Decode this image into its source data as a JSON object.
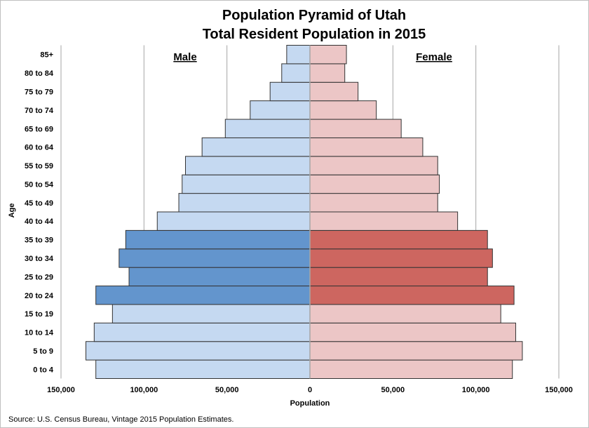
{
  "chart_data": {
    "type": "bar",
    "orientation": "horizontal-population-pyramid",
    "title_line1": "Population Pyramid of Utah",
    "title_line2": "Total Resident Population in 2015",
    "xlabel": "Population",
    "ylabel": "Age",
    "source": "Source: U.S. Census Bureau, Vintage 2015 Population Estimates.",
    "male_label": "Male",
    "female_label": "Female",
    "xlim": [
      -150000,
      150000
    ],
    "x_ticks": [
      -150000,
      -100000,
      -50000,
      0,
      50000,
      100000,
      150000
    ],
    "x_tick_labels": [
      "150,000",
      "100,000",
      "50,000",
      "0",
      "50,000",
      "100,000",
      "150,000"
    ],
    "grid": "vertical",
    "categories": [
      "0 to 4",
      "5 to 9",
      "10 to 14",
      "15 to 19",
      "20 to 24",
      "25 to 29",
      "30 to 34",
      "35 to 39",
      "40 to 44",
      "45 to 49",
      "50 to 54",
      "55 to 59",
      "60 to 64",
      "65 to 69",
      "70 to 74",
      "75 to 79",
      "80 to 84",
      "85+"
    ],
    "highlighted_categories": [
      "20 to 24",
      "25 to 29",
      "30 to 34",
      "35 to 39"
    ],
    "series": [
      {
        "name": "Male",
        "values": [
          129000,
          135000,
          130000,
          119000,
          129000,
          109000,
          115000,
          111000,
          92000,
          79000,
          77000,
          75000,
          65000,
          51000,
          36000,
          24000,
          17000,
          14000
        ]
      },
      {
        "name": "Female",
        "values": [
          122000,
          128000,
          124000,
          115000,
          123000,
          107000,
          110000,
          107000,
          89000,
          77000,
          78000,
          77000,
          68000,
          55000,
          40000,
          29000,
          21000,
          22000
        ]
      }
    ],
    "colors": {
      "male_base": "#c5d9f1",
      "male_highlight": "#6395cd",
      "female_base": "#ecc6c6",
      "female_highlight": "#cd6660",
      "bar_stroke": "#333333",
      "gridline": "#a6a6a6",
      "center_line": "#a6a6a6"
    }
  }
}
